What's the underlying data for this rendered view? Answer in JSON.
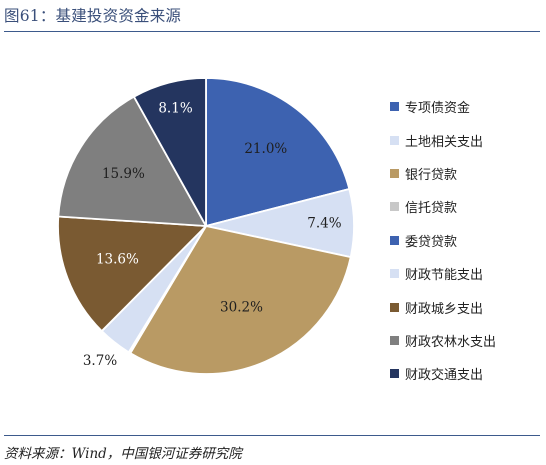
{
  "figure": {
    "title": "图61：基建投资资金来源",
    "source": "资料来源：Wind，中国银河证券研究院"
  },
  "chart_data": {
    "type": "pie",
    "title": "",
    "legend_position": "right",
    "start_angle_deg": 0,
    "direction": "clockwise",
    "slices": [
      {
        "name": "专项债资金",
        "value": 21.0,
        "label": "21.0%",
        "color": "#3d62b0"
      },
      {
        "name": "土地相关支出",
        "value": 7.4,
        "label": "7.4%",
        "color": "#d6e0f3"
      },
      {
        "name": "银行贷款",
        "value": 30.2,
        "label": "30.2%",
        "color": "#b99a64"
      },
      {
        "name": "信托贷款",
        "value": 0.2,
        "label": "",
        "color": "#c8c8c8"
      },
      {
        "name": "委贷贷款",
        "value": 0.0,
        "label": "",
        "color": "#3d62b0"
      },
      {
        "name": "财政节能支出",
        "value": 3.7,
        "label": "3.7%",
        "color": "#d6e0f3"
      },
      {
        "name": "财政城乡支出",
        "value": 13.6,
        "label": "13.6%",
        "color": "#7a5a32"
      },
      {
        "name": "财政农林水支出",
        "value": 15.9,
        "label": "15.9%",
        "color": "#7f7f7f"
      },
      {
        "name": "财政交通支出",
        "value": 8.1,
        "label": "8.1%",
        "color": "#24355f"
      }
    ]
  }
}
